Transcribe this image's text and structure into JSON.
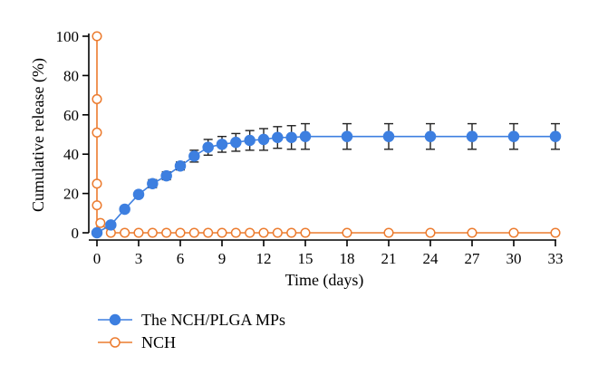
{
  "chart_data": {
    "type": "line",
    "title": "",
    "xlabel": "Time (days)",
    "ylabel": "Cumulative release (%)",
    "xlim": [
      0,
      33
    ],
    "ylim": [
      0,
      100
    ],
    "xticks": [
      0,
      3,
      6,
      9,
      12,
      15,
      18,
      21,
      24,
      27,
      30,
      33
    ],
    "yticks": [
      0,
      20,
      40,
      60,
      80,
      100
    ],
    "grid": false,
    "legend_position": "bottom-left",
    "series": [
      {
        "name": "The NCH/PLGA MPs",
        "color": "#3d7fe0",
        "marker": "filled-circle",
        "x": [
          0,
          1,
          2,
          3,
          4,
          5,
          6,
          7,
          8,
          9,
          10,
          11,
          12,
          13,
          14,
          15,
          18,
          21,
          24,
          27,
          30,
          33
        ],
        "y": [
          0,
          4,
          12,
          19.5,
          25,
          29,
          34,
          39,
          43.5,
          45,
          46,
          47,
          47.5,
          48.5,
          48.5,
          49,
          49,
          49,
          49,
          49,
          49,
          49
        ],
        "error": [
          0,
          0.5,
          1,
          1.5,
          2,
          2,
          2,
          3,
          4,
          4,
          4.5,
          5,
          5.5,
          5.5,
          6,
          6.5,
          6.5,
          6.5,
          6.5,
          6.5,
          6.5,
          6.5
        ]
      },
      {
        "name": "NCH",
        "color": "#ec7b2e",
        "marker": "open-circle",
        "x": [
          0,
          0,
          0,
          0,
          0,
          0,
          0.25,
          1,
          2,
          3,
          4,
          5,
          6,
          7,
          8,
          9,
          10,
          11,
          12,
          13,
          14,
          15,
          18,
          21,
          24,
          27,
          30,
          33
        ],
        "y": [
          100,
          68,
          51,
          25,
          14,
          0,
          5,
          0,
          0,
          0,
          0,
          0,
          0,
          0,
          0,
          0,
          0,
          0,
          0,
          0,
          0,
          0,
          0,
          0,
          0,
          0,
          0,
          0
        ]
      }
    ]
  }
}
